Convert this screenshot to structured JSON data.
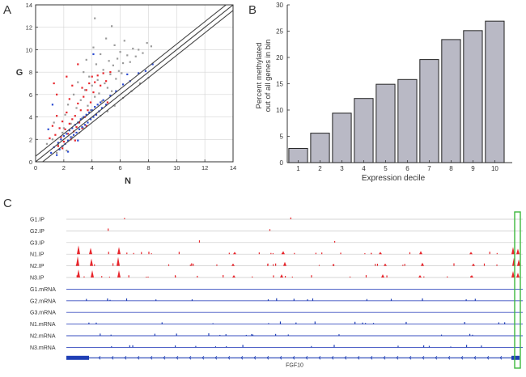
{
  "panels": {
    "a": "A",
    "b": "B",
    "c": "C"
  },
  "chart_data": [
    {
      "panel": "A",
      "type": "scatter",
      "xlabel": "N",
      "ylabel": "G",
      "xlim": [
        0,
        14
      ],
      "ylim": [
        0,
        14
      ],
      "x_ticks": [
        "0",
        "2",
        "4",
        "6",
        "8",
        "10",
        "12",
        "14"
      ],
      "y_ticks": [
        "0",
        "2",
        "4",
        "6",
        "8",
        "10",
        "12",
        "14"
      ],
      "grid": true,
      "diagonal_lines": [
        {
          "intercept": 0
        },
        {
          "intercept": 0.5
        },
        {
          "intercept": -0.5
        }
      ],
      "series": [
        {
          "color": "#9a9a9a",
          "points": [
            [
              1.2,
              2.0
            ],
            [
              1.6,
              1.5
            ],
            [
              1.9,
              2.6
            ],
            [
              2.1,
              4.2
            ],
            [
              2.3,
              5.1
            ],
            [
              2.5,
              3.4
            ],
            [
              2.7,
              6.0
            ],
            [
              2.9,
              4.8
            ],
            [
              3.0,
              7.1
            ],
            [
              3.2,
              5.5
            ],
            [
              3.3,
              3.9
            ],
            [
              3.4,
              8.0
            ],
            [
              3.5,
              6.4
            ],
            [
              3.6,
              9.1
            ],
            [
              3.7,
              5.0
            ],
            [
              3.8,
              7.6
            ],
            [
              3.9,
              4.6
            ],
            [
              4.0,
              6.8
            ],
            [
              4.1,
              10.2
            ],
            [
              4.2,
              5.8
            ],
            [
              4.3,
              8.7
            ],
            [
              4.4,
              7.3
            ],
            [
              4.5,
              6.1
            ],
            [
              4.6,
              9.6
            ],
            [
              4.7,
              5.4
            ],
            [
              4.8,
              8.2
            ],
            [
              4.9,
              7.0
            ],
            [
              5.0,
              11.0
            ],
            [
              5.1,
              6.6
            ],
            [
              5.2,
              9.0
            ],
            [
              5.3,
              7.8
            ],
            [
              5.4,
              6.3
            ],
            [
              5.5,
              8.6
            ],
            [
              5.6,
              10.4
            ],
            [
              5.7,
              7.4
            ],
            [
              5.8,
              9.2
            ],
            [
              5.9,
              8.1
            ],
            [
              6.0,
              9.8
            ],
            [
              6.1,
              7.9
            ],
            [
              6.2,
              8.8
            ],
            [
              6.3,
              10.8
            ],
            [
              6.5,
              9.5
            ],
            [
              6.7,
              8.9
            ],
            [
              6.9,
              10.1
            ],
            [
              7.1,
              9.4
            ],
            [
              7.3,
              10.0
            ],
            [
              7.6,
              9.7
            ],
            [
              7.9,
              10.6
            ],
            [
              8.2,
              10.3
            ],
            [
              3.1,
              2.6
            ],
            [
              3.4,
              3.0
            ],
            [
              2.6,
              2.2
            ],
            [
              4.6,
              4.1
            ],
            [
              5.1,
              4.5
            ],
            [
              5.6,
              5.0
            ],
            [
              6.2,
              5.7
            ],
            [
              6.8,
              6.3
            ],
            [
              7.4,
              7.0
            ],
            [
              8.0,
              7.5
            ],
            [
              2.2,
              1.0
            ],
            [
              1.5,
              0.8
            ],
            [
              4.2,
              12.8
            ],
            [
              5.4,
              12.1
            ],
            [
              2.0,
              3.0
            ],
            [
              1.3,
              3.5
            ],
            [
              0.8,
              1.6
            ]
          ]
        },
        {
          "color": "#e8262c",
          "points": [
            [
              1.0,
              2.1
            ],
            [
              1.2,
              3.2
            ],
            [
              1.4,
              2.4
            ],
            [
              1.5,
              4.1
            ],
            [
              1.6,
              1.4
            ],
            [
              1.7,
              3.0
            ],
            [
              1.8,
              2.2
            ],
            [
              1.9,
              3.6
            ],
            [
              2.0,
              1.8
            ],
            [
              2.1,
              2.9
            ],
            [
              2.2,
              4.4
            ],
            [
              2.3,
              2.5
            ],
            [
              2.4,
              3.4
            ],
            [
              2.5,
              2.0
            ],
            [
              2.6,
              3.8
            ],
            [
              2.7,
              2.7
            ],
            [
              2.8,
              4.1
            ],
            [
              2.9,
              3.1
            ],
            [
              3.0,
              5.2
            ],
            [
              3.1,
              3.5
            ],
            [
              3.2,
              4.6
            ],
            [
              3.3,
              3.0
            ],
            [
              3.4,
              5.8
            ],
            [
              3.5,
              4.0
            ],
            [
              3.6,
              6.4
            ],
            [
              3.7,
              4.6
            ],
            [
              3.8,
              7.0
            ],
            [
              3.9,
              5.3
            ],
            [
              4.0,
              7.6
            ],
            [
              4.1,
              6.2
            ],
            [
              4.2,
              7.1
            ],
            [
              4.4,
              7.7
            ],
            [
              4.6,
              6.8
            ],
            [
              4.8,
              7.9
            ],
            [
              5.0,
              7.2
            ],
            [
              5.3,
              8.0
            ],
            [
              2.2,
              7.6
            ],
            [
              1.5,
              6.0
            ],
            [
              1.3,
              7.0
            ],
            [
              2.6,
              6.8
            ],
            [
              3.0,
              8.7
            ],
            [
              2.8,
              1.9
            ],
            [
              3.6,
              3.2
            ],
            [
              4.3,
              4.2
            ],
            [
              5.1,
              5.3
            ],
            [
              1.9,
              1.2
            ],
            [
              2.4,
              5.6
            ],
            [
              3.3,
              6.6
            ]
          ]
        },
        {
          "color": "#2b4bd1",
          "points": [
            [
              1.1,
              0.8
            ],
            [
              1.3,
              1.3
            ],
            [
              1.5,
              0.6
            ],
            [
              1.6,
              1.7
            ],
            [
              1.7,
              1.1
            ],
            [
              1.8,
              2.0
            ],
            [
              1.9,
              1.4
            ],
            [
              2.0,
              2.3
            ],
            [
              2.1,
              1.6
            ],
            [
              2.2,
              2.5
            ],
            [
              2.3,
              1.9
            ],
            [
              2.4,
              2.8
            ],
            [
              2.5,
              2.2
            ],
            [
              2.6,
              3.0
            ],
            [
              2.7,
              2.4
            ],
            [
              2.8,
              3.3
            ],
            [
              2.9,
              2.6
            ],
            [
              3.0,
              3.5
            ],
            [
              3.1,
              2.9
            ],
            [
              3.2,
              3.8
            ],
            [
              3.3,
              3.1
            ],
            [
              3.4,
              4.0
            ],
            [
              3.5,
              3.3
            ],
            [
              3.6,
              4.2
            ],
            [
              3.7,
              3.5
            ],
            [
              3.8,
              4.4
            ],
            [
              3.9,
              3.8
            ],
            [
              4.0,
              4.6
            ],
            [
              4.1,
              4.0
            ],
            [
              4.2,
              4.9
            ],
            [
              4.3,
              4.2
            ],
            [
              4.4,
              5.1
            ],
            [
              4.5,
              4.5
            ],
            [
              4.6,
              5.3
            ],
            [
              4.7,
              4.8
            ],
            [
              4.8,
              5.5
            ],
            [
              5.0,
              5.1
            ],
            [
              5.3,
              5.9
            ],
            [
              5.7,
              6.3
            ],
            [
              6.2,
              6.9
            ],
            [
              6.7,
              7.2
            ],
            [
              7.3,
              7.9
            ],
            [
              7.8,
              8.1
            ],
            [
              8.3,
              8.7
            ],
            [
              0.9,
              2.9
            ],
            [
              1.2,
              5.1
            ],
            [
              2.3,
              0.9
            ],
            [
              3.0,
              1.9
            ],
            [
              4.1,
              9.6
            ],
            [
              6.5,
              7.8
            ]
          ]
        }
      ]
    },
    {
      "panel": "B",
      "type": "bar",
      "categories": [
        "1",
        "2",
        "3",
        "4",
        "5",
        "6",
        "7",
        "8",
        "9",
        "10"
      ],
      "values": [
        2.7,
        5.6,
        9.4,
        12.2,
        14.9,
        15.8,
        19.6,
        23.4,
        25.1,
        26.9
      ],
      "xlabel": "Expression decile",
      "ylabel": "Percent methylated out of all genes in bin",
      "ylabel_lines": [
        "Percent methylated",
        "out of all genes in bin"
      ],
      "ylim": [
        0,
        30
      ],
      "y_ticks": [
        "0",
        "5",
        "10",
        "15",
        "20",
        "25",
        "30"
      ],
      "bar_color": "#b9b9c5",
      "grid": false
    },
    {
      "panel": "C",
      "type": "area",
      "tracks": [
        {
          "label": "G1.IP",
          "color": "#e8262c"
        },
        {
          "label": "G2.IP",
          "color": "#e8262c"
        },
        {
          "label": "G3.IP",
          "color": "#e8262c"
        },
        {
          "label": "N1.IP",
          "color": "#e8262c"
        },
        {
          "label": "N2.IP",
          "color": "#e8262c"
        },
        {
          "label": "N3.IP",
          "color": "#e8262c"
        },
        {
          "label": "G1.mRNA",
          "color": "#1f3fb5"
        },
        {
          "label": "G2.mRNA",
          "color": "#1f3fb5"
        },
        {
          "label": "G3.mRNA",
          "color": "#1f3fb5"
        },
        {
          "label": "N1.mRNA",
          "color": "#1f3fb5"
        },
        {
          "label": "N2.mRNA",
          "color": "#1f3fb5"
        },
        {
          "label": "N3.mRNA",
          "color": "#1f3fb5"
        }
      ],
      "gene": "FGF10",
      "highlight_color": "#3db83d"
    }
  ]
}
